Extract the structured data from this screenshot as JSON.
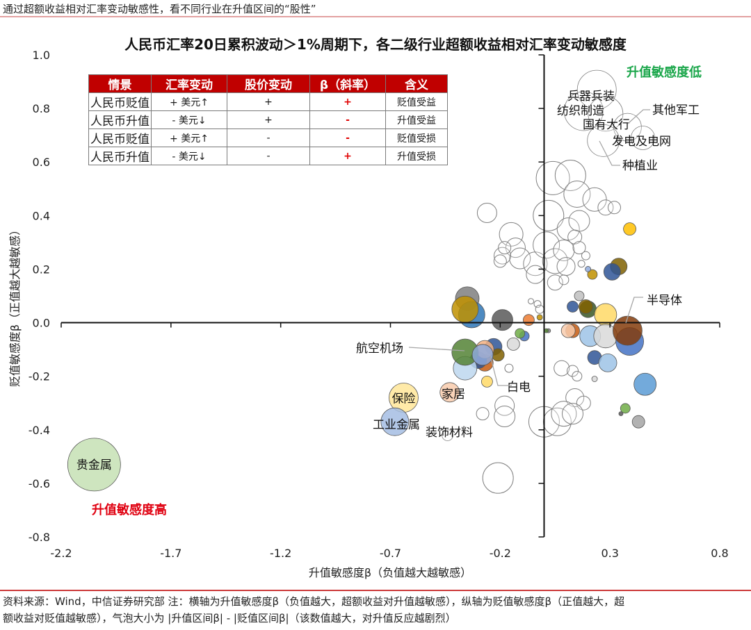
{
  "header": {
    "caption": "通过超额收益相对汇率变动敏感性，看不同行业在升值区间的“股性”"
  },
  "table": {
    "headers": [
      "情景",
      "汇率变动",
      "股价变动",
      "β（斜率）",
      "含义"
    ],
    "rows": [
      {
        "scenario": "人民币贬值",
        "fx": "+ 美元↑",
        "price": "+",
        "beta": "+",
        "meaning": "贬值受益"
      },
      {
        "scenario": "人民币升值",
        "fx": "- 美元↓",
        "price": "+",
        "beta": "-",
        "meaning": "升值受益"
      },
      {
        "scenario": "人民币贬值",
        "fx": "+ 美元↑",
        "price": "-",
        "beta": "-",
        "meaning": "贬值受损"
      },
      {
        "scenario": "人民币升值",
        "fx": "- 美元↓",
        "price": "-",
        "beta": "+",
        "meaning": "升值受损"
      }
    ]
  },
  "annotations": {
    "low": "升值敏感度低",
    "high": "升值敏感度高",
    "low_color": "#1aa64a",
    "high_color": "#e00010"
  },
  "footer": {
    "source_line1": "资料来源：Wind，中信证券研究部 注：横轴为升值敏感度β（负值越大，超额收益对升值越敏感），纵轴为贬值敏感度β（正值越大，超",
    "source_line2": "额收益对贬值越敏感），气泡大小为 |升值区间β| - |贬值区间β|（该数值越大，对升值反应越剧烈）"
  },
  "chart_data": {
    "type": "scatter",
    "title": "人民币汇率20日累积波动＞1%周期下，各二级行业超额收益相对汇率变动敏感度",
    "xlabel": "升值敏感度β（负值越大越敏感）",
    "ylabel": "贬值敏感度β（正值越大越敏感）",
    "xlim": [
      -2.2,
      0.8
    ],
    "ylim": [
      -0.8,
      1.0
    ],
    "xticks": [
      -2.2,
      -1.7,
      -1.2,
      -0.7,
      -0.2,
      0.3,
      0.8
    ],
    "xtick_labels": [
      "-2.2",
      "-1.7",
      "-1.2",
      "-0.7",
      "-0.2",
      "0.3",
      "0.8"
    ],
    "yticks": [
      1.0,
      0.8,
      0.6,
      0.4,
      0.2,
      0.0,
      -0.2,
      -0.4,
      -0.6,
      -0.8
    ],
    "ytick_labels": [
      "1.0",
      "0.8",
      "0.6",
      "0.4",
      "0.2",
      "0.0",
      "-0.2",
      "-0.4",
      "-0.6",
      "-0.8"
    ],
    "grid": false,
    "legend": "none",
    "bubble_size_meaning": "|升值区间β| - |贬值区间β|",
    "labeled_points": [
      {
        "label": "贵金属",
        "x": -2.05,
        "y": -0.53,
        "r": 38,
        "fill": "#c5e0b4"
      },
      {
        "label": "保险",
        "x": -0.64,
        "y": -0.28,
        "r": 21,
        "fill": "#ffe699"
      },
      {
        "label": "工业金属",
        "x": -0.68,
        "y": -0.37,
        "r": 20,
        "fill": "#a4bde3"
      },
      {
        "label": "家居",
        "x": -0.43,
        "y": -0.26,
        "r": 14,
        "fill": "#f8cbad"
      },
      {
        "label": "装饰材料",
        "x": -0.44,
        "y": -0.42,
        "r": 8,
        "fill": "#ffffff"
      },
      {
        "label": "航空机场",
        "x": -0.36,
        "y": -0.11,
        "r": 19,
        "fill": "#548235"
      },
      {
        "label": "白电",
        "x": -0.28,
        "y": -0.12,
        "r": 15,
        "fill": "#8faadc"
      },
      {
        "label": "半导体",
        "x": 0.38,
        "y": -0.03,
        "r": 21,
        "fill": "#843c0c"
      },
      {
        "label": "兵器兵装",
        "x": 0.24,
        "y": 0.87,
        "r": 28,
        "fill": "#ffffff"
      },
      {
        "label": "纺织制造",
        "x": 0.18,
        "y": 0.79,
        "r": 28,
        "fill": "#ffffff"
      },
      {
        "label": "国有大行",
        "x": 0.28,
        "y": 0.78,
        "r": 25,
        "fill": "#ffffff"
      },
      {
        "label": "其他军工",
        "x": 0.38,
        "y": 0.73,
        "r": 20,
        "fill": "#ffffff"
      },
      {
        "label": "发电及电网",
        "x": 0.45,
        "y": 0.69,
        "r": 17,
        "fill": "#ffffff"
      },
      {
        "label": "种植业",
        "x": 0.27,
        "y": 0.68,
        "r": 23,
        "fill": "#ffffff"
      }
    ],
    "other_points": [
      {
        "x": -0.35,
        "y": 0.09,
        "r": 17,
        "fill": "#7f7f7f"
      },
      {
        "x": -0.33,
        "y": 0.03,
        "r": 19,
        "fill": "#2e75b6"
      },
      {
        "x": -0.36,
        "y": 0.05,
        "r": 19,
        "fill": "#bf9000"
      },
      {
        "x": -0.19,
        "y": 0.01,
        "r": 15,
        "fill": "#595959"
      },
      {
        "x": -0.07,
        "y": 0.01,
        "r": 8,
        "fill": "#ed7d31"
      },
      {
        "x": -0.02,
        "y": 0.02,
        "r": 4,
        "fill": "#bf9000"
      },
      {
        "x": 0.02,
        "y": -0.03,
        "r": 3,
        "fill": "#7f7f7f"
      },
      {
        "x": -0.09,
        "y": -0.05,
        "r": 7,
        "fill": "#4472c4"
      },
      {
        "x": -0.11,
        "y": -0.04,
        "r": 7,
        "fill": "#70ad47"
      },
      {
        "x": -0.14,
        "y": -0.08,
        "r": 9,
        "fill": "#d9d9d9"
      },
      {
        "x": -0.23,
        "y": -0.09,
        "r": 12,
        "fill": "#2f5597"
      },
      {
        "x": -0.21,
        "y": -0.12,
        "r": 9,
        "fill": "#806000"
      },
      {
        "x": -0.27,
        "y": -0.15,
        "r": 12,
        "fill": "#c55a11"
      },
      {
        "x": -0.3,
        "y": -0.14,
        "r": 12,
        "fill": "#2f5597"
      },
      {
        "x": -0.27,
        "y": -0.1,
        "r": 13,
        "fill": "#f4b183"
      },
      {
        "x": -0.36,
        "y": -0.17,
        "r": 17,
        "fill": "#bdd7ee"
      },
      {
        "x": -0.26,
        "y": -0.22,
        "r": 8,
        "fill": "#ffd966"
      },
      {
        "x": -0.16,
        "y": -0.17,
        "r": 6,
        "fill": "#ffffff"
      },
      {
        "x": 0.39,
        "y": 0.35,
        "r": 9,
        "fill": "#ffc000"
      },
      {
        "x": 0.34,
        "y": 0.21,
        "r": 12,
        "fill": "#7f6000"
      },
      {
        "x": 0.31,
        "y": 0.19,
        "r": 12,
        "fill": "#2f5597"
      },
      {
        "x": 0.22,
        "y": 0.18,
        "r": 7,
        "fill": "#bf9000"
      },
      {
        "x": 0.2,
        "y": 0.2,
        "r": 4,
        "fill": "#8faadc"
      },
      {
        "x": 0.16,
        "y": 0.1,
        "r": 7,
        "fill": "#bfbfbf"
      },
      {
        "x": 0.13,
        "y": 0.06,
        "r": 8,
        "fill": "#2f5597"
      },
      {
        "x": 0.2,
        "y": 0.05,
        "r": 12,
        "fill": "#385723"
      },
      {
        "x": 0.19,
        "y": 0.06,
        "r": 10,
        "fill": "#806000"
      },
      {
        "x": 0.28,
        "y": 0.03,
        "r": 16,
        "fill": "#ffd966"
      },
      {
        "x": 0.13,
        "y": -0.03,
        "r": 10,
        "fill": "#c55a11"
      },
      {
        "x": 0.11,
        "y": -0.03,
        "r": 10,
        "fill": "#f8cbad"
      },
      {
        "x": 0.21,
        "y": -0.05,
        "r": 15,
        "fill": "#9dc3e6"
      },
      {
        "x": 0.28,
        "y": -0.05,
        "r": 17,
        "fill": "#d9d9d9"
      },
      {
        "x": 0.39,
        "y": -0.07,
        "r": 20,
        "fill": "#4472c4"
      },
      {
        "x": 0.23,
        "y": -0.13,
        "r": 10,
        "fill": "#2f5597"
      },
      {
        "x": 0.29,
        "y": -0.15,
        "r": 13,
        "fill": "#9dc3e6"
      },
      {
        "x": 0.46,
        "y": -0.23,
        "r": 16,
        "fill": "#5b9bd5"
      },
      {
        "x": 0.37,
        "y": -0.32,
        "r": 7,
        "fill": "#70ad47"
      },
      {
        "x": 0.43,
        "y": -0.37,
        "r": 9,
        "fill": "#a5a5a5"
      },
      {
        "x": 0.35,
        "y": -0.34,
        "r": 3,
        "fill": "#595959"
      },
      {
        "x": 0.01,
        "y": -0.03,
        "r": 3,
        "fill": "#548235"
      },
      {
        "x": 0.23,
        "y": -0.21,
        "r": 4,
        "fill": "#d9d9d9"
      }
    ],
    "hollow_points": [
      {
        "x": -0.26,
        "y": 0.41,
        "r": 14
      },
      {
        "x": 0.04,
        "y": 0.54,
        "r": 24
      },
      {
        "x": 0.12,
        "y": 0.55,
        "r": 22
      },
      {
        "x": 0.15,
        "y": 0.48,
        "r": 19
      },
      {
        "x": 0.23,
        "y": 0.46,
        "r": 17
      },
      {
        "x": 0.28,
        "y": 0.43,
        "r": 11
      },
      {
        "x": 0.32,
        "y": 0.43,
        "r": 9
      },
      {
        "x": 0.02,
        "y": 0.4,
        "r": 22
      },
      {
        "x": 0.11,
        "y": 0.35,
        "r": 16
      },
      {
        "x": 0.16,
        "y": 0.38,
        "r": 15
      },
      {
        "x": -0.15,
        "y": 0.33,
        "r": 17
      },
      {
        "x": -0.13,
        "y": 0.28,
        "r": 14
      },
      {
        "x": -0.11,
        "y": 0.24,
        "r": 15
      },
      {
        "x": -0.04,
        "y": 0.22,
        "r": 17
      },
      {
        "x": 0.01,
        "y": 0.29,
        "r": 19
      },
      {
        "x": 0.05,
        "y": 0.23,
        "r": 18
      },
      {
        "x": 0.09,
        "y": 0.27,
        "r": 15
      },
      {
        "x": 0.1,
        "y": 0.21,
        "r": 13
      },
      {
        "x": 0.14,
        "y": 0.32,
        "r": 10
      },
      {
        "x": -0.19,
        "y": 0.25,
        "r": 12
      },
      {
        "x": -0.18,
        "y": 0.28,
        "r": 9
      },
      {
        "x": -0.2,
        "y": 0.23,
        "r": 9
      },
      {
        "x": 0.05,
        "y": 0.15,
        "r": 11
      },
      {
        "x": 0.16,
        "y": 0.28,
        "r": 9
      },
      {
        "x": 0.19,
        "y": 0.25,
        "r": 6
      },
      {
        "x": 0.17,
        "y": 0.22,
        "r": 5
      },
      {
        "x": -0.04,
        "y": 0.18,
        "r": 13
      },
      {
        "x": 0.09,
        "y": 0.16,
        "r": 7
      },
      {
        "x": -0.03,
        "y": 0.07,
        "r": 5
      },
      {
        "x": -0.06,
        "y": 0.08,
        "r": 4
      },
      {
        "x": -0.02,
        "y": 0.05,
        "r": 6
      },
      {
        "x": 0.08,
        "y": -0.17,
        "r": 11
      },
      {
        "x": 0.13,
        "y": -0.18,
        "r": 8
      },
      {
        "x": 0.15,
        "y": -0.2,
        "r": 7
      },
      {
        "x": 0.14,
        "y": -0.28,
        "r": 13
      },
      {
        "x": 0.18,
        "y": -0.3,
        "r": 10
      },
      {
        "x": -0.28,
        "y": -0.34,
        "r": 9
      },
      {
        "x": -0.18,
        "y": -0.31,
        "r": 14
      },
      {
        "x": -0.18,
        "y": -0.35,
        "r": 15
      },
      {
        "x": 0.0,
        "y": -0.37,
        "r": 22
      },
      {
        "x": 0.06,
        "y": -0.37,
        "r": 20
      },
      {
        "x": 0.09,
        "y": -0.34,
        "r": 18
      },
      {
        "x": 0.13,
        "y": -0.34,
        "r": 15
      },
      {
        "x": -0.21,
        "y": -0.58,
        "r": 22
      }
    ]
  }
}
